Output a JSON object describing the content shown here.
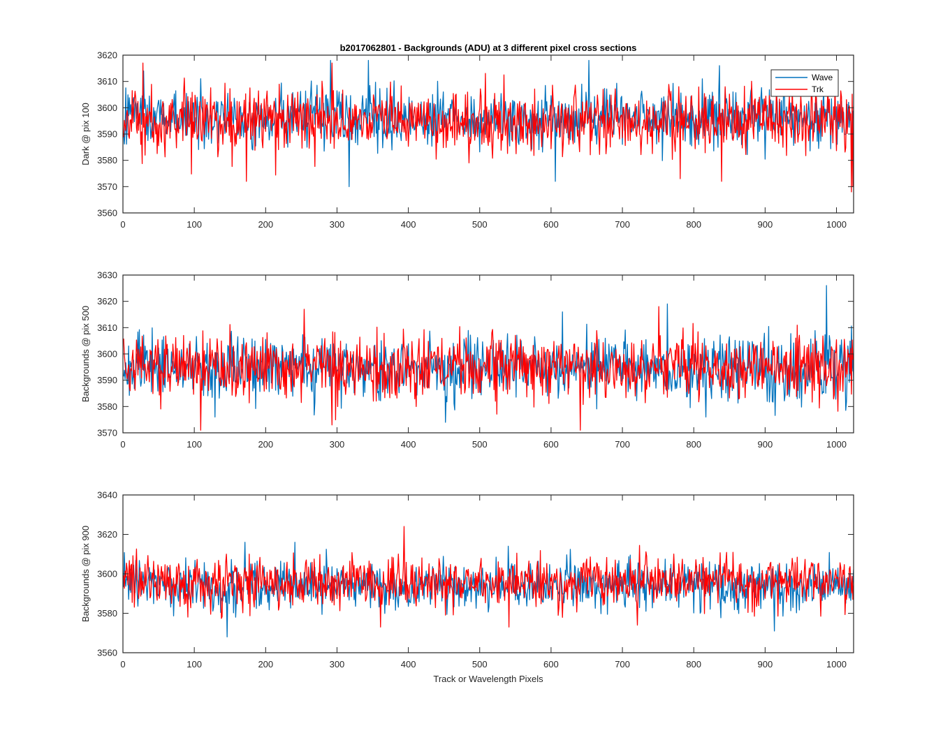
{
  "figure": {
    "title": "b2017062801 - Backgrounds (ADU) at 3 different pixel cross sections",
    "xlabel": "Track or Wavelength Pixels"
  },
  "colors": {
    "wave": "#0072BD",
    "trk": "#FF0000",
    "axes": "#262626"
  },
  "legend": {
    "entries": [
      "Wave",
      "Trk"
    ],
    "placement": "top-right of first subplot"
  },
  "chart_data": [
    {
      "type": "line",
      "title": "b2017062801 - Backgrounds (ADU) at 3 different pixel cross sections",
      "xlabel": "",
      "ylabel": "Dark @ pix 100",
      "xlim": [
        0,
        1024
      ],
      "ylim": [
        3560,
        3620
      ],
      "xticks": [
        0,
        100,
        200,
        300,
        400,
        500,
        600,
        700,
        800,
        900,
        1000
      ],
      "yticks": [
        3560,
        3570,
        3580,
        3590,
        3600,
        3610,
        3620
      ],
      "legend": true,
      "grid": false,
      "series": [
        {
          "name": "Wave",
          "color": "#0072BD",
          "n_points": 1024,
          "mean": 3596,
          "std": 5.5,
          "min": 3570,
          "max": 3618,
          "features": [
            [
              316,
              3570
            ],
            [
              290,
              3618
            ],
            [
              652,
              3618
            ],
            [
              605,
              3572
            ],
            [
              28,
              3614
            ],
            [
              343,
              3618
            ]
          ]
        },
        {
          "name": "Trk",
          "color": "#FF0000",
          "n_points": 1024,
          "mean": 3595,
          "std": 6.0,
          "min": 3568,
          "max": 3617,
          "features": [
            [
              172,
              3572
            ],
            [
              1020,
              3568
            ],
            [
              1022,
              3570
            ],
            [
              27,
              3617
            ],
            [
              292,
              3617
            ],
            [
              780,
              3573
            ],
            [
              838,
              3572
            ]
          ]
        }
      ]
    },
    {
      "type": "line",
      "title": "",
      "xlabel": "",
      "ylabel": "Backgrounds @ pix 500",
      "xlim": [
        0,
        1024
      ],
      "ylim": [
        3570,
        3630
      ],
      "xticks": [
        0,
        100,
        200,
        300,
        400,
        500,
        600,
        700,
        800,
        900,
        1000
      ],
      "yticks": [
        3570,
        3580,
        3590,
        3600,
        3610,
        3620,
        3630
      ],
      "legend": false,
      "grid": false,
      "series": [
        {
          "name": "Wave",
          "color": "#0072BD",
          "n_points": 1024,
          "mean": 3595,
          "std": 6.0,
          "min": 3574,
          "max": 3626,
          "features": [
            [
              985,
              3626
            ],
            [
              451,
              3574
            ],
            [
              762,
              3619
            ],
            [
              615,
              3616
            ]
          ]
        },
        {
          "name": "Trk",
          "color": "#FF0000",
          "n_points": 1024,
          "mean": 3595,
          "std": 6.0,
          "min": 3571,
          "max": 3618,
          "features": [
            [
              108,
              3571
            ],
            [
              640,
              3571
            ],
            [
              292,
              3573
            ],
            [
              253,
              3617
            ],
            [
              750,
              3618
            ]
          ]
        }
      ]
    },
    {
      "type": "line",
      "title": "",
      "xlabel": "Track or Wavelength Pixels",
      "ylabel": "Backgrounds @ pix 900",
      "xlim": [
        0,
        1024
      ],
      "ylim": [
        3560,
        3640
      ],
      "xticks": [
        0,
        100,
        200,
        300,
        400,
        500,
        600,
        700,
        800,
        900,
        1000
      ],
      "yticks": [
        3560,
        3580,
        3600,
        3620,
        3640
      ],
      "legend": false,
      "grid": false,
      "series": [
        {
          "name": "Wave",
          "color": "#0072BD",
          "n_points": 1024,
          "mean": 3594,
          "std": 6.0,
          "min": 3568,
          "max": 3616,
          "features": [
            [
              145,
              3568
            ],
            [
              912,
              3571
            ],
            [
              170,
              3616
            ],
            [
              240,
              3616
            ]
          ]
        },
        {
          "name": "Trk",
          "color": "#FF0000",
          "n_points": 1024,
          "mean": 3596,
          "std": 6.5,
          "min": 3573,
          "max": 3624,
          "features": [
            [
              393,
              3624
            ],
            [
              360,
              3573
            ],
            [
              540,
              3573
            ],
            [
              720,
              3574
            ]
          ]
        }
      ]
    }
  ]
}
